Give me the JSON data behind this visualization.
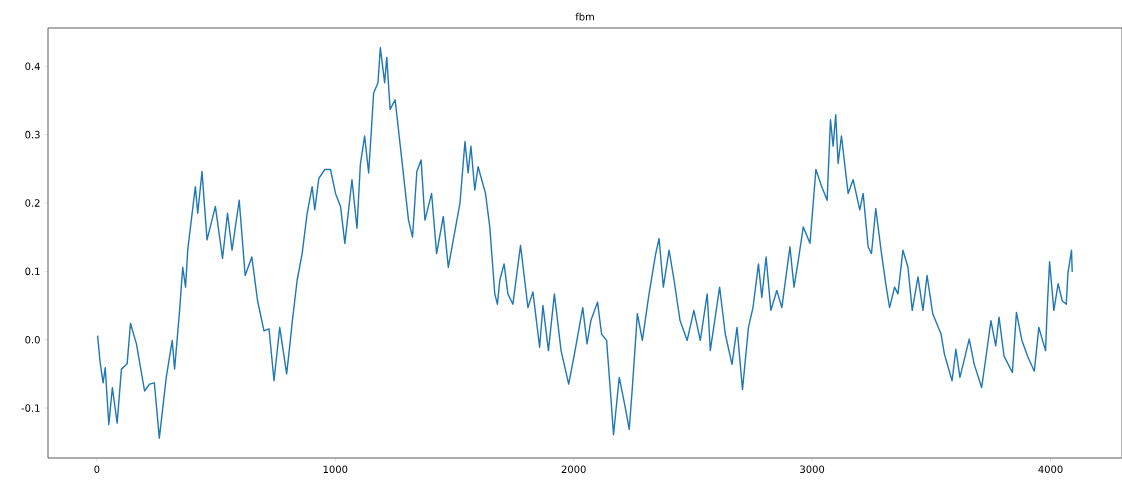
{
  "chart_data": {
    "type": "line",
    "title": "fbm",
    "x": [
      3,
      13,
      26,
      35,
      50,
      65,
      85,
      103,
      127,
      141,
      166,
      200,
      221,
      241,
      262,
      291,
      316,
      326,
      347,
      360,
      372,
      381,
      413,
      423,
      441,
      462,
      497,
      527,
      548,
      567,
      597,
      622,
      650,
      674,
      701,
      722,
      743,
      767,
      796,
      809,
      820,
      840,
      861,
      882,
      903,
      914,
      931,
      956,
      980,
      1001,
      1022,
      1040,
      1070,
      1091,
      1105,
      1123,
      1140,
      1161,
      1179,
      1189,
      1207,
      1216,
      1230,
      1251,
      1276,
      1307,
      1324,
      1342,
      1360,
      1376,
      1404,
      1425,
      1453,
      1474,
      1495,
      1523,
      1544,
      1557,
      1569,
      1585,
      1599,
      1630,
      1648,
      1669,
      1680,
      1690,
      1708,
      1724,
      1745,
      1777,
      1808,
      1829,
      1857,
      1871,
      1894,
      1919,
      1947,
      1979,
      2003,
      2038,
      2056,
      2072,
      2100,
      2117,
      2138,
      2156,
      2167,
      2191,
      2214,
      2233,
      2246,
      2267,
      2288,
      2316,
      2344,
      2358,
      2376,
      2400,
      2421,
      2446,
      2476,
      2504,
      2531,
      2560,
      2573,
      2612,
      2636,
      2664,
      2685,
      2708,
      2733,
      2752,
      2775,
      2789,
      2807,
      2827,
      2852,
      2873,
      2907,
      2924,
      2942,
      2963,
      2991,
      3016,
      3040,
      3063,
      3077,
      3088,
      3099,
      3109,
      3123,
      3151,
      3172,
      3200,
      3214,
      3235,
      3249,
      3267,
      3291,
      3311,
      3325,
      3346,
      3360,
      3381,
      3402,
      3420,
      3444,
      3465,
      3482,
      3506,
      3541,
      3555,
      3587,
      3603,
      3620,
      3659,
      3680,
      3711,
      3729,
      3750,
      3770,
      3784,
      3805,
      3840,
      3857,
      3880,
      3906,
      3932,
      3951,
      3979,
      3987,
      3996,
      4014,
      4032,
      4049,
      4066,
      4073,
      4088,
      4091
    ],
    "series": [
      {
        "color": "#1f77b4",
        "values": [
          0.006,
          -0.031,
          -0.063,
          -0.041,
          -0.124,
          -0.07,
          -0.122,
          -0.043,
          -0.035,
          0.024,
          -0.006,
          -0.075,
          -0.065,
          -0.063,
          -0.144,
          -0.055,
          -0.001,
          -0.043,
          0.043,
          0.106,
          0.077,
          0.131,
          0.224,
          0.185,
          0.246,
          0.146,
          0.195,
          0.119,
          0.185,
          0.131,
          0.204,
          0.094,
          0.121,
          0.057,
          0.013,
          0.016,
          -0.06,
          0.018,
          -0.05,
          -0.009,
          0.028,
          0.087,
          0.126,
          0.185,
          0.224,
          0.19,
          0.236,
          0.249,
          0.249,
          0.214,
          0.195,
          0.141,
          0.234,
          0.163,
          0.256,
          0.298,
          0.244,
          0.361,
          0.376,
          0.427,
          0.376,
          0.413,
          0.337,
          0.351,
          0.273,
          0.175,
          0.15,
          0.246,
          0.263,
          0.175,
          0.214,
          0.126,
          0.18,
          0.106,
          0.146,
          0.2,
          0.29,
          0.244,
          0.283,
          0.219,
          0.253,
          0.214,
          0.165,
          0.067,
          0.052,
          0.087,
          0.111,
          0.067,
          0.052,
          0.138,
          0.047,
          0.07,
          -0.011,
          0.05,
          -0.016,
          0.067,
          -0.016,
          -0.065,
          -0.021,
          0.047,
          -0.006,
          0.028,
          0.055,
          0.008,
          -0.001,
          -0.085,
          -0.139,
          -0.055,
          -0.095,
          -0.131,
          -0.07,
          0.038,
          -0.001,
          0.067,
          0.126,
          0.148,
          0.077,
          0.131,
          0.087,
          0.028,
          -0.001,
          0.043,
          -0.001,
          0.067,
          -0.016,
          0.077,
          0.008,
          -0.036,
          0.018,
          -0.073,
          0.018,
          0.047,
          0.111,
          0.062,
          0.121,
          0.043,
          0.072,
          0.047,
          0.136,
          0.077,
          0.116,
          0.165,
          0.141,
          0.249,
          0.224,
          0.204,
          0.322,
          0.283,
          0.329,
          0.258,
          0.298,
          0.214,
          0.234,
          0.19,
          0.214,
          0.136,
          0.126,
          0.192,
          0.126,
          0.077,
          0.047,
          0.077,
          0.067,
          0.131,
          0.106,
          0.043,
          0.092,
          0.043,
          0.094,
          0.038,
          0.008,
          -0.021,
          -0.06,
          -0.014,
          -0.055,
          0.001,
          -0.036,
          -0.07,
          -0.026,
          0.028,
          -0.009,
          0.033,
          -0.024,
          -0.048,
          0.04,
          -0.001,
          -0.026,
          -0.046,
          0.018,
          -0.016,
          0.052,
          0.114,
          0.043,
          0.082,
          0.057,
          0.052,
          0.097,
          0.131,
          0.099
        ]
      }
    ],
    "xlim": [
      -205,
      4300
    ],
    "ylim": [
      -0.173,
      0.456
    ],
    "xticks": [
      0,
      1000,
      2000,
      3000,
      4000
    ],
    "yticks": [
      -0.1,
      {
        "value": 0,
        "label": "0.0"
      },
      0.1,
      0.2,
      0.3,
      0.4
    ],
    "grid": false,
    "marker": "none",
    "line_style": "solid"
  }
}
